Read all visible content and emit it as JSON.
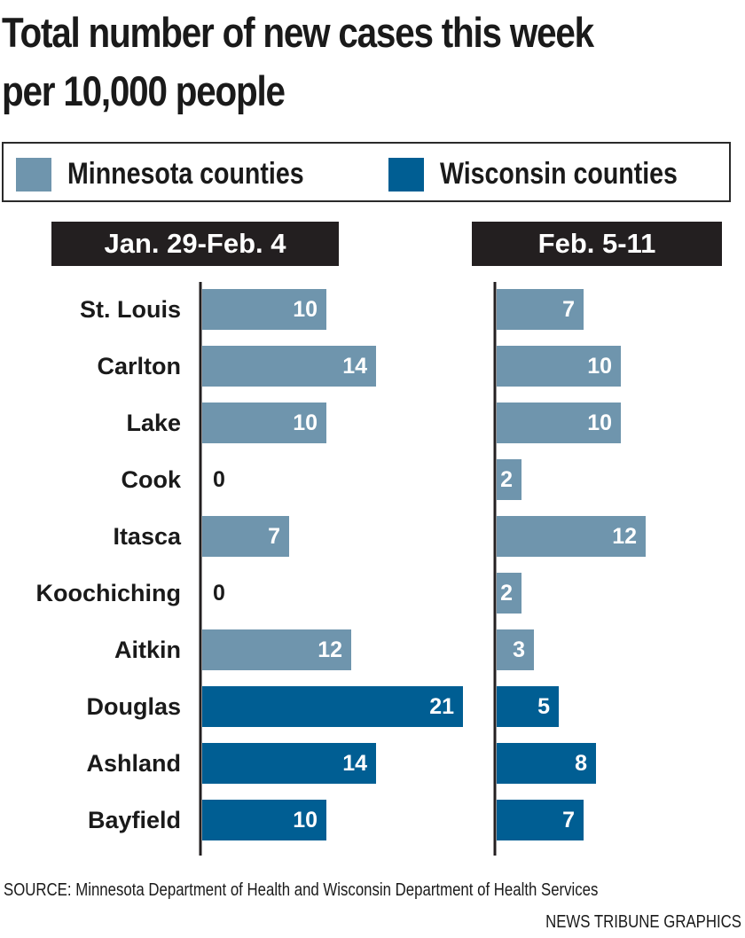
{
  "title_lines": [
    "Total number of new cases this week",
    "per 10,000 people"
  ],
  "legend": [
    {
      "label": "Minnesota counties",
      "color": "#6f95ad"
    },
    {
      "label": "Wisconsin counties",
      "color": "#005e93"
    }
  ],
  "chart_data": {
    "type": "bar",
    "orientation": "horizontal",
    "categories": [
      "St. Louis",
      "Carlton",
      "Lake",
      "Cook",
      "Itasca",
      "Koochiching",
      "Aitkin",
      "Douglas",
      "Ashland",
      "Bayfield"
    ],
    "state": [
      "Minnesota",
      "Minnesota",
      "Minnesota",
      "Minnesota",
      "Minnesota",
      "Minnesota",
      "Minnesota",
      "Wisconsin",
      "Wisconsin",
      "Wisconsin"
    ],
    "series": [
      {
        "name": "Jan. 29-Feb. 4",
        "values": [
          10,
          14,
          10,
          0,
          7,
          0,
          12,
          21,
          14,
          10
        ]
      },
      {
        "name": "Feb. 5-11",
        "values": [
          7,
          10,
          10,
          2,
          12,
          2,
          3,
          5,
          8,
          7
        ]
      }
    ],
    "legend_position": "top",
    "grid": false
  },
  "source": "SOURCE: Minnesota Department of Health and  Wisconsin Department of Health Services",
  "credit": "NEWS TRIBUNE GRAPHICS"
}
